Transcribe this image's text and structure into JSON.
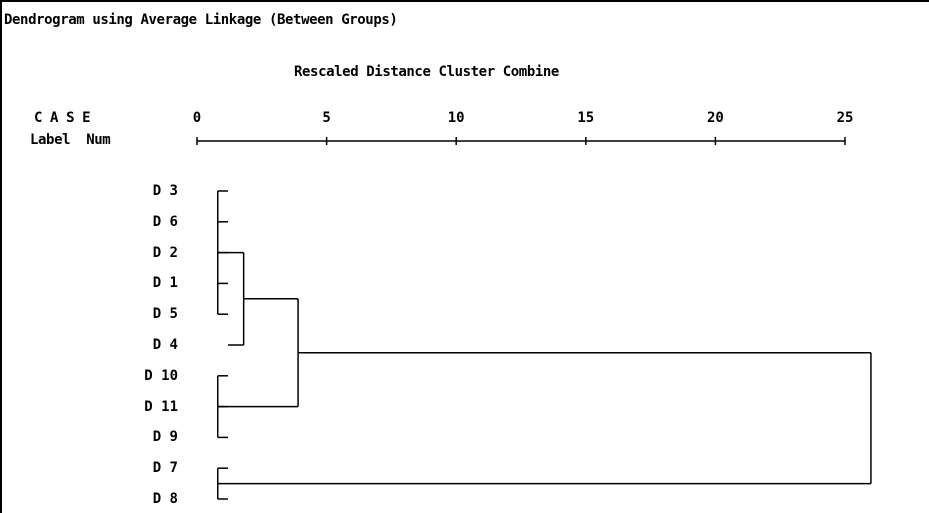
{
  "title": "Dendrogram using Average Linkage (Between Groups)",
  "subtitle": "Rescaled Distance Cluster Combine",
  "header": {
    "case_label": "C A S E",
    "label_col": "Label",
    "num_col": "Num"
  },
  "axis": {
    "ticks": [
      "0",
      "5",
      "10",
      "15",
      "20",
      "25"
    ],
    "range": [
      0,
      25
    ]
  },
  "cases": [
    "D 3",
    "D 6",
    "D 2",
    "D 1",
    "D 5",
    "D 4",
    "D 10",
    "D 11",
    "D 9",
    "D 7",
    "D 8"
  ],
  "merges": [
    {
      "members": [
        "D 3",
        "D 6",
        "D 2",
        "D 1",
        "D 5"
      ],
      "distance": 0.8
    },
    {
      "members": [
        "D 10",
        "D 11",
        "D 9"
      ],
      "distance": 0.8
    },
    {
      "members": [
        "D 7",
        "D 8"
      ],
      "distance": 0.8
    },
    {
      "members": [
        "(D 3 ... D 5)",
        "D 4"
      ],
      "distance": 1.8
    },
    {
      "members": [
        "(D 3 ... D 4)",
        "(D 10 ... D 9)"
      ],
      "distance": 3.9
    },
    {
      "members": [
        "(D 3 ... D 9)",
        "(D 7, D 8)"
      ],
      "distance": 26.0
    }
  ]
}
